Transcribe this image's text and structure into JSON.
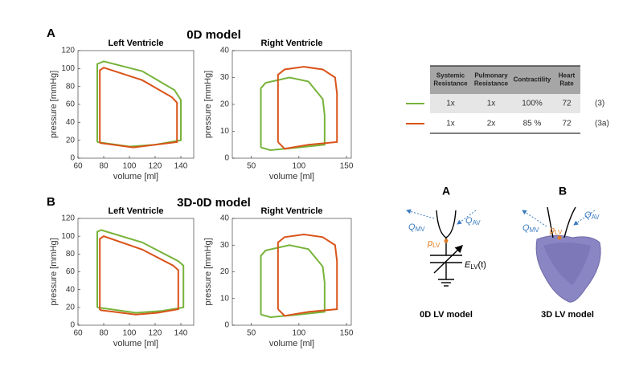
{
  "sections": [
    {
      "label": "A",
      "title": "0D model"
    },
    {
      "label": "B",
      "title": "3D-0D model"
    }
  ],
  "chart_data": [
    {
      "type": "line",
      "title": "Left Ventricle",
      "xlabel": "volume [ml]",
      "ylabel": "pressure [mmHg]",
      "xlim": [
        60,
        150
      ],
      "xticks": [
        60,
        80,
        100,
        120,
        140
      ],
      "ylim": [
        0,
        120
      ],
      "yticks": [
        0,
        20,
        40,
        60,
        80,
        100,
        120
      ],
      "series": [
        {
          "color": "#77b33a",
          "x": [
            75,
            75,
            80,
            110,
            135,
            140,
            140,
            120,
            100,
            75
          ],
          "values": [
            18,
            105,
            108,
            97,
            76,
            65,
            20,
            15,
            13,
            18
          ]
        },
        {
          "color": "#d95319",
          "x": [
            77,
            77,
            80,
            110,
            133,
            137,
            137,
            120,
            103,
            77
          ],
          "values": [
            17,
            98,
            101,
            87,
            68,
            62,
            18,
            15,
            12,
            17
          ]
        }
      ]
    },
    {
      "type": "line",
      "title": "Right Ventricle",
      "xlabel": "volume [ml]",
      "ylabel": "pressure [mmHg]",
      "xlim": [
        30,
        155
      ],
      "xticks": [
        50,
        100,
        150
      ],
      "ylim": [
        0,
        40
      ],
      "yticks": [
        0,
        10,
        20,
        30,
        40
      ],
      "series": [
        {
          "color": "#77b33a",
          "x": [
            60,
            60,
            65,
            90,
            110,
            125,
            127,
            127,
            100,
            70,
            60
          ],
          "values": [
            4,
            26,
            28,
            30,
            28.5,
            22,
            16,
            5,
            4,
            3,
            4
          ]
        },
        {
          "color": "#d95319",
          "x": [
            78,
            78,
            85,
            105,
            125,
            138,
            140,
            140,
            110,
            85,
            78
          ],
          "values": [
            6,
            31,
            33,
            34,
            33,
            30,
            24,
            6,
            5,
            3.5,
            6
          ]
        }
      ]
    },
    {
      "type": "line",
      "title": "Left Ventricle",
      "xlabel": "volume [ml]",
      "ylabel": "pressure [mmHg]",
      "xlim": [
        60,
        150
      ],
      "xticks": [
        60,
        80,
        100,
        120,
        140
      ],
      "ylim": [
        0,
        120
      ],
      "yticks": [
        0,
        20,
        40,
        60,
        80,
        100,
        120
      ],
      "series": [
        {
          "color": "#77b33a",
          "x": [
            75,
            75,
            78,
            110,
            138,
            142,
            142,
            125,
            105,
            75
          ],
          "values": [
            20,
            105,
            107,
            93,
            72,
            67,
            20,
            16,
            14,
            20
          ]
        },
        {
          "color": "#d95319",
          "x": [
            77,
            77,
            80,
            110,
            134,
            138,
            138,
            122,
            105,
            77
          ],
          "values": [
            17,
            97,
            100,
            85,
            67,
            62,
            18,
            14,
            12,
            17
          ]
        }
      ]
    },
    {
      "type": "line",
      "title": "Right Ventricle",
      "xlabel": "volume [ml]",
      "ylabel": "pressure [mmHg]",
      "xlim": [
        30,
        155
      ],
      "xticks": [
        50,
        100,
        150
      ],
      "ylim": [
        0,
        40
      ],
      "yticks": [
        0,
        10,
        20,
        30,
        40
      ],
      "series": [
        {
          "color": "#77b33a",
          "x": [
            60,
            60,
            65,
            90,
            110,
            125,
            127,
            127,
            100,
            70,
            60
          ],
          "values": [
            4,
            26,
            28,
            30,
            28.5,
            22,
            16,
            5,
            4,
            3,
            4
          ]
        },
        {
          "color": "#d95319",
          "x": [
            78,
            78,
            85,
            105,
            125,
            138,
            140,
            140,
            110,
            85,
            78
          ],
          "values": [
            6,
            31,
            33,
            34,
            33,
            30,
            24,
            6,
            5,
            3.5,
            6
          ]
        }
      ]
    }
  ],
  "table": {
    "header": [
      [
        "Systemic",
        "Resistance"
      ],
      [
        "Pulmonary",
        "Resistance"
      ],
      [
        "Contractility"
      ],
      [
        "Heart",
        "Rate"
      ]
    ],
    "rows": [
      [
        "1x",
        "1x",
        "100%",
        "72"
      ],
      [
        "1x",
        "2x",
        "85 %",
        "72"
      ]
    ],
    "equations": [
      "(3)",
      "(3a)"
    ],
    "colors": [
      "#77b33a",
      "#d95319"
    ]
  },
  "diagram": {
    "a": {
      "label": "A",
      "caption": "0D LV model",
      "q_mv": {
        "main": "Q",
        "sub": "MV"
      },
      "q_av": {
        "main": "Q",
        "sub": "AV"
      },
      "p_lv": {
        "main": "p",
        "sub": "LV"
      },
      "e_lv": {
        "main": "E",
        "sub": "LV",
        "rest": "(t)"
      }
    },
    "b": {
      "label": "B",
      "caption": "3D LV model",
      "q_mv": {
        "main": "Q",
        "sub": "MV"
      },
      "q_av": {
        "main": "Q",
        "sub": "AV"
      },
      "p_lv": {
        "main": "p",
        "sub": "LV"
      }
    }
  }
}
